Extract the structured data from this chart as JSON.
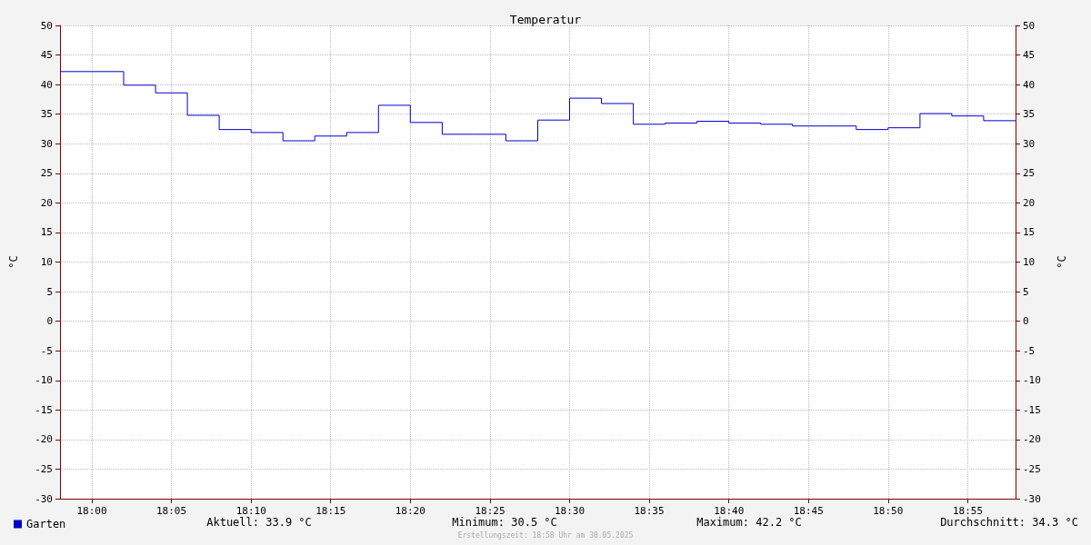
{
  "chart_data": {
    "type": "step",
    "title": "Temperatur",
    "ylabel": "°C",
    "y2label": "°C",
    "x": [
      17.9667,
      18,
      18.0333,
      18.0667,
      18.1,
      18.1333,
      18.1667,
      18.2,
      18.2333,
      18.2667,
      18.3,
      18.3333,
      18.3667,
      18.4,
      18.4333,
      18.4667,
      18.5,
      18.5333,
      18.5667,
      18.6,
      18.6333,
      18.6667,
      18.7,
      18.7333,
      18.7667,
      18.8,
      18.8333,
      18.8667,
      18.9,
      18.9333,
      18.9667
    ],
    "series": [
      {
        "name": "Garten",
        "color": "#0000cc",
        "values": [
          42.2,
          42.2,
          42.2,
          39.9,
          38.6,
          34.8,
          32.4,
          31.9,
          30.5,
          31.3,
          31.9,
          36.5,
          33.6,
          31.6,
          31.6,
          30.5,
          34.0,
          37.7,
          36.8,
          33.3,
          33.5,
          33.8,
          33.5,
          33.3,
          33.0,
          33.0,
          32.4,
          32.7,
          35.1,
          34.7,
          33.9
        ]
      }
    ],
    "xlim": [
      17.9667,
      18.9667
    ],
    "xticks": [
      {
        "value": 18,
        "label": "18:00"
      },
      {
        "value": 18.0833,
        "label": "18:05"
      },
      {
        "value": 18.1667,
        "label": "18:10"
      },
      {
        "value": 18.25,
        "label": "18:15"
      },
      {
        "value": 18.3333,
        "label": "18:20"
      },
      {
        "value": 18.4167,
        "label": "18:25"
      },
      {
        "value": 18.5,
        "label": "18:30"
      },
      {
        "value": 18.5833,
        "label": "18:35"
      },
      {
        "value": 18.6667,
        "label": "18:40"
      },
      {
        "value": 18.75,
        "label": "18:45"
      },
      {
        "value": 18.8333,
        "label": "18:50"
      },
      {
        "value": 18.9167,
        "label": "18:55"
      }
    ],
    "ylim": [
      -30,
      50
    ],
    "yticks": [
      -30,
      -25,
      -20,
      -15,
      -10,
      -5,
      0,
      5,
      10,
      15,
      20,
      25,
      30,
      35,
      40,
      45,
      50
    ],
    "y2lim": [
      -30,
      50
    ],
    "y2ticks": [
      -30,
      -25,
      -20,
      -15,
      -10,
      -5,
      0,
      5,
      10,
      15,
      20,
      25,
      30,
      35,
      40,
      45,
      50
    ],
    "grid": true,
    "legend": "bottom left",
    "marker": "none",
    "line_style": "solid",
    "annotations": [
      "Aktuell: 33.9 °C",
      "Minimum: 30.5 °C",
      "Maximum: 42.2 °C",
      "Durchschnitt: 34.3 °C",
      "Erstellungszeit: 18:58 Uhr am 30.05.2025"
    ]
  }
}
